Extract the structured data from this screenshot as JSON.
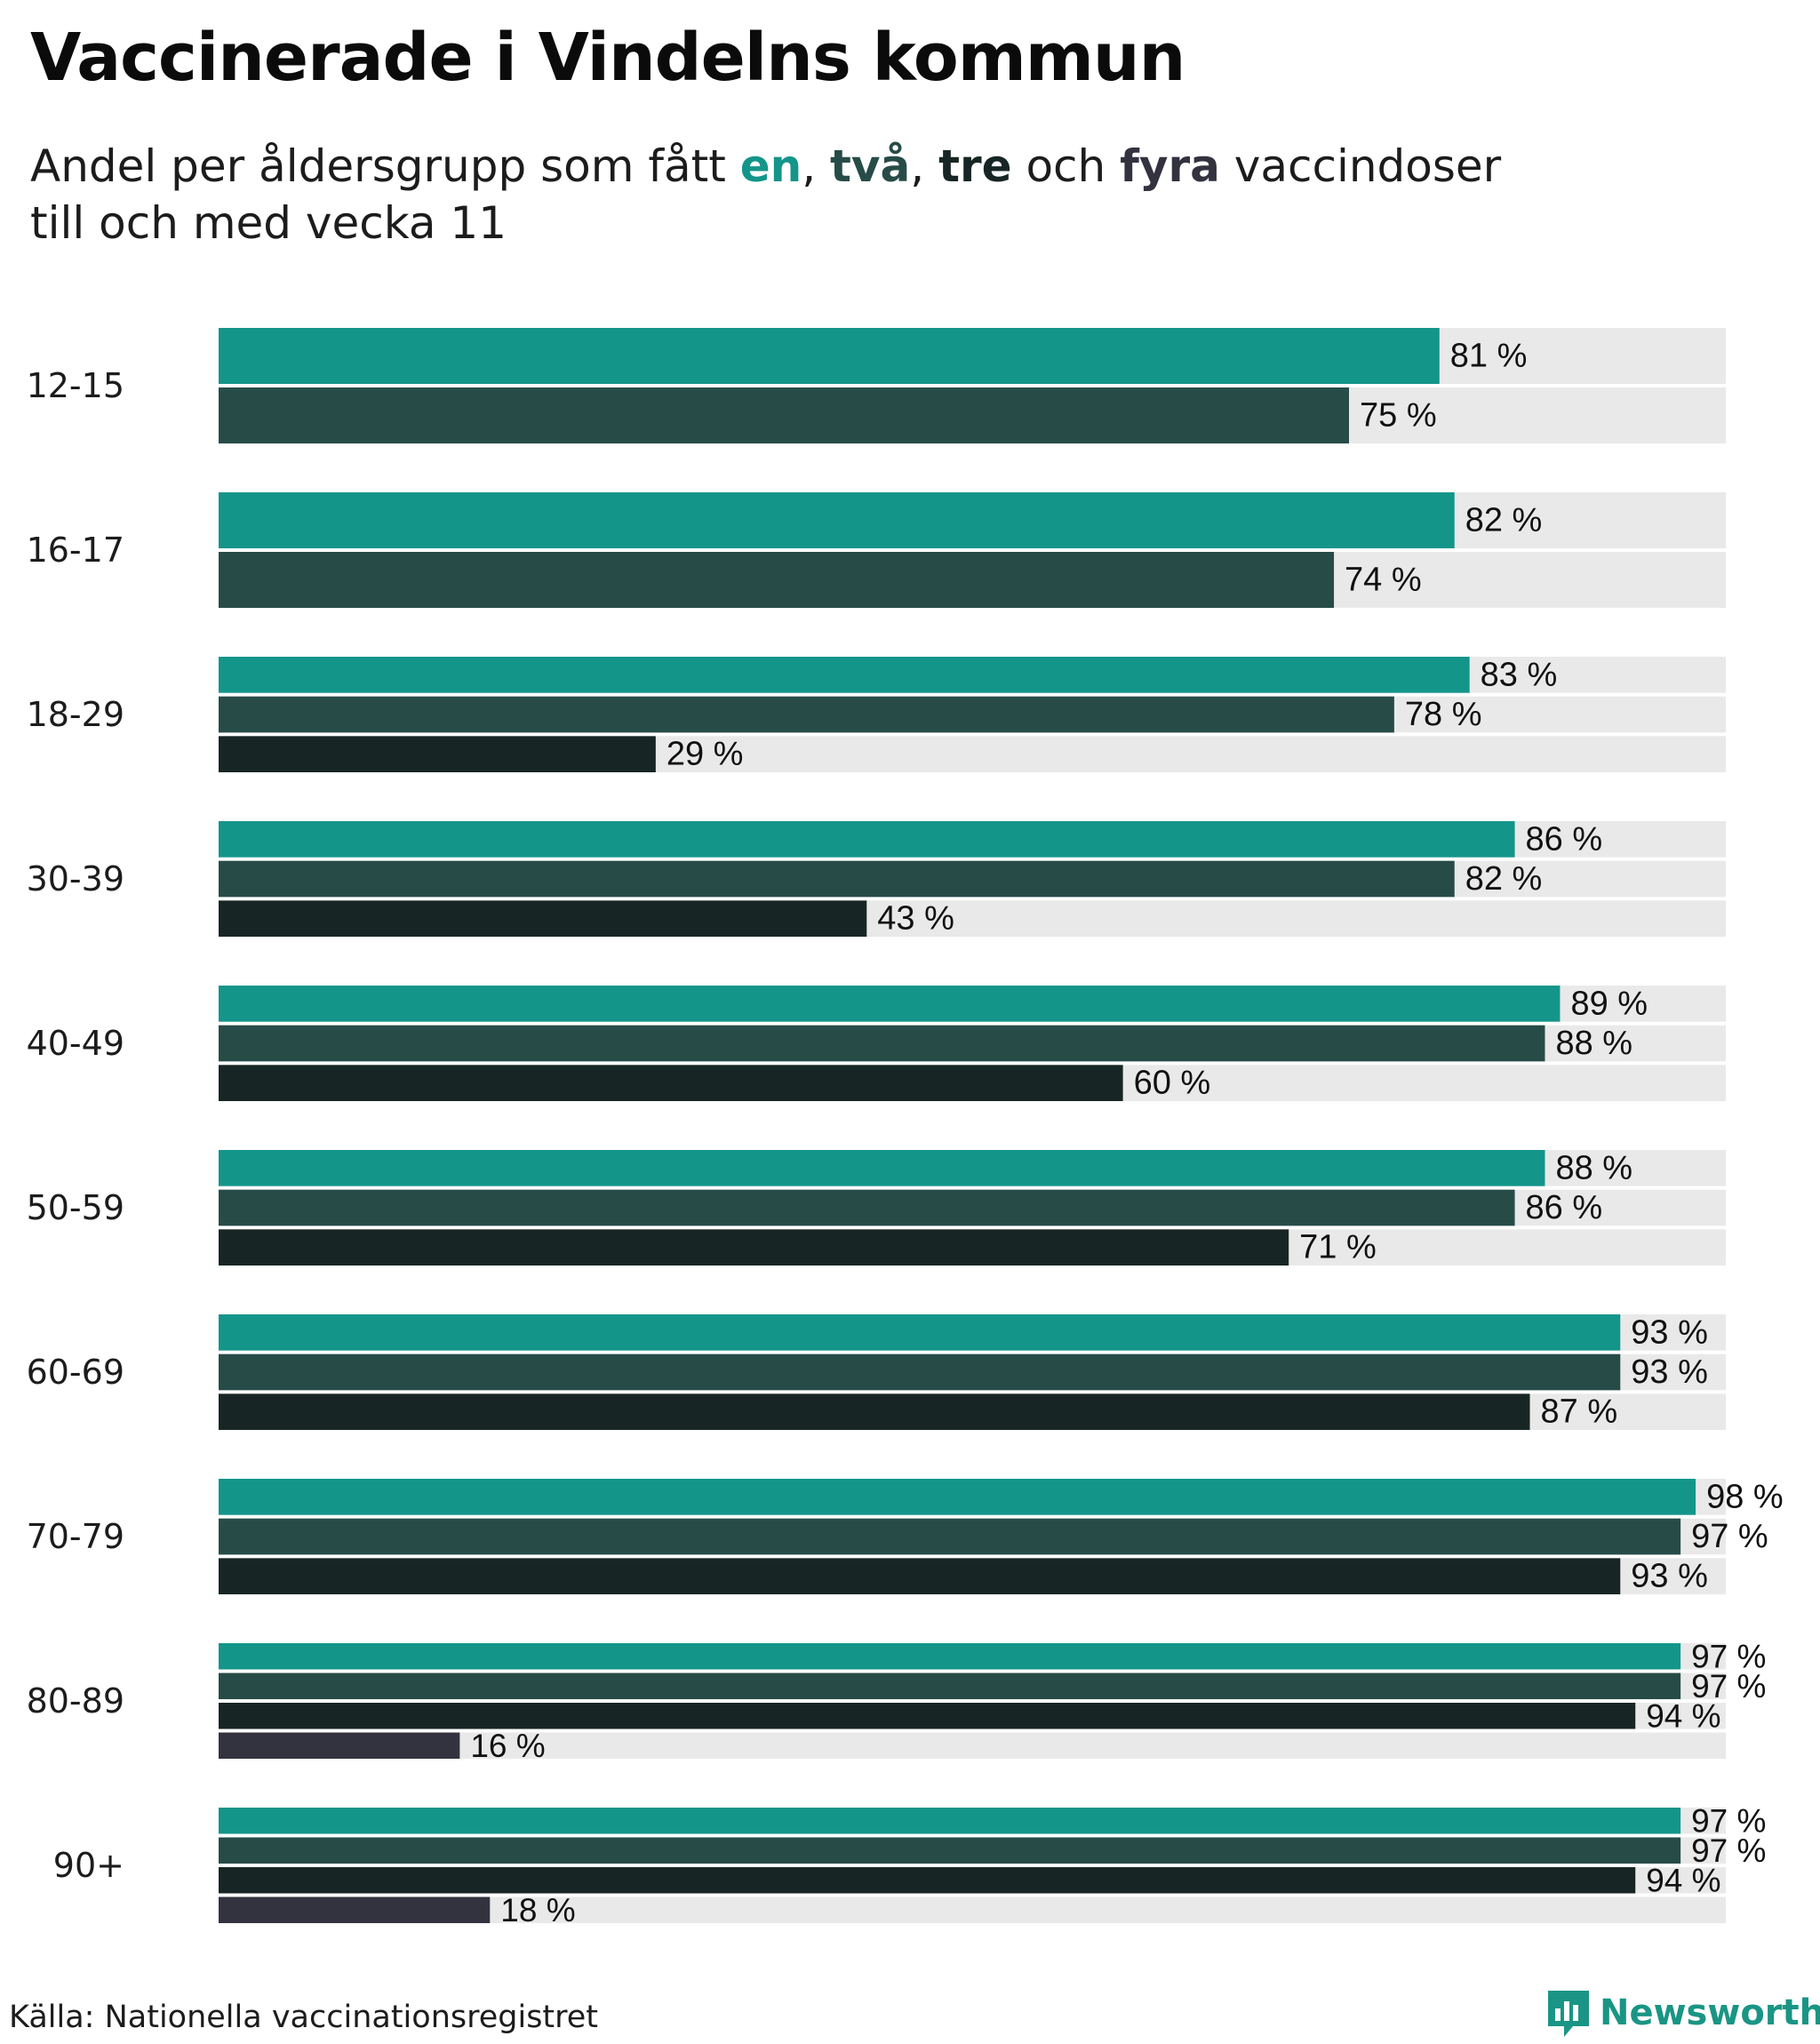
{
  "title": "Vaccinerade i Vindelns kommun",
  "subtitle": {
    "line1_prefix": "Andel per åldersgrupp som fått ",
    "dose1": "en",
    "sep1": ", ",
    "dose2": "två",
    "sep2": ", ",
    "dose3": "tre",
    "sep3": " och ",
    "dose4": "fyra",
    "line1_suffix": " vaccindoser",
    "line2": "till och med vecka 11"
  },
  "colors": {
    "dose1": "#14958a",
    "dose2": "#274c48",
    "dose3": "#172624",
    "dose4": "#33323f",
    "track": "#e9e9e9"
  },
  "chart_data": {
    "type": "bar",
    "orientation": "horizontal",
    "xlim": [
      0,
      100
    ],
    "value_suffix": " %",
    "categories": [
      "12-15",
      "16-17",
      "18-29",
      "30-39",
      "40-49",
      "50-59",
      "60-69",
      "70-79",
      "80-89",
      "90+"
    ],
    "series": [
      {
        "name": "en",
        "color": "#14958a",
        "values": [
          81,
          82,
          83,
          86,
          89,
          88,
          93,
          98,
          97,
          97
        ]
      },
      {
        "name": "två",
        "color": "#274c48",
        "values": [
          75,
          74,
          78,
          82,
          88,
          86,
          93,
          97,
          97,
          97
        ]
      },
      {
        "name": "tre",
        "color": "#172624",
        "values": [
          null,
          null,
          29,
          43,
          60,
          71,
          87,
          93,
          94,
          94
        ]
      },
      {
        "name": "fyra",
        "color": "#33323f",
        "values": [
          null,
          null,
          null,
          null,
          null,
          null,
          null,
          null,
          16,
          18
        ]
      }
    ]
  },
  "footer": {
    "source": "Källa: Nationella vaccinationsregistret",
    "brand": "Newsworthy"
  }
}
